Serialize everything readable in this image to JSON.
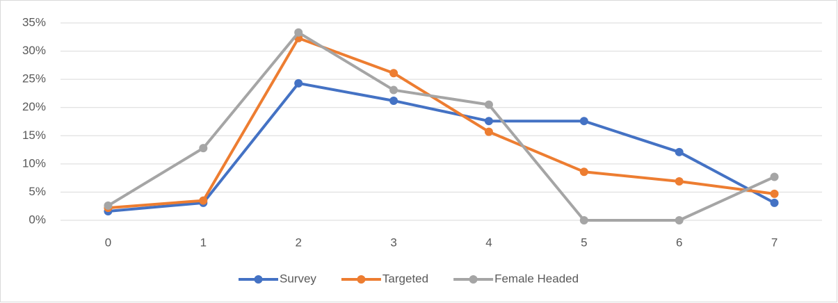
{
  "chart_data": {
    "type": "line",
    "categories": [
      "0",
      "1",
      "2",
      "3",
      "4",
      "5",
      "6",
      "7"
    ],
    "series": [
      {
        "name": "Survey",
        "color": "#4472c4",
        "values": [
          1.6,
          3.1,
          24.3,
          21.2,
          17.6,
          17.6,
          12.1,
          3.1
        ]
      },
      {
        "name": "Targeted",
        "color": "#ed7d31",
        "values": [
          2.2,
          3.5,
          32.3,
          26.1,
          15.7,
          8.6,
          6.9,
          4.7
        ]
      },
      {
        "name": "Female Headed",
        "color": "#a5a5a5",
        "values": [
          2.6,
          12.8,
          33.3,
          23.1,
          20.5,
          0,
          0,
          7.7
        ]
      }
    ],
    "ylim": [
      0,
      35
    ],
    "yticks": [
      {
        "value": 0,
        "label": "0%"
      },
      {
        "value": 5,
        "label": "5%"
      },
      {
        "value": 10,
        "label": "10%"
      },
      {
        "value": 15,
        "label": "15%"
      },
      {
        "value": 20,
        "label": "20%"
      },
      {
        "value": 25,
        "label": "25%"
      },
      {
        "value": 30,
        "label": "30%"
      },
      {
        "value": 35,
        "label": "35%"
      }
    ],
    "grid": true,
    "legend": "bottom"
  }
}
